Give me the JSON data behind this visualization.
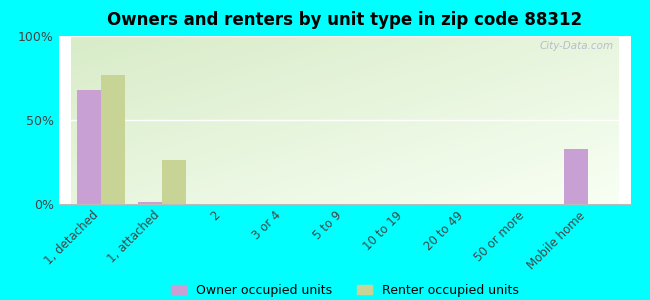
{
  "title": "Owners and renters by unit type in zip code 88312",
  "categories": [
    "1, detached",
    "1, attached",
    "2",
    "3 or 4",
    "5 to 9",
    "10 to 19",
    "20 to 49",
    "50 or more",
    "Mobile home"
  ],
  "owner_values": [
    68,
    1,
    0,
    0,
    0,
    0,
    0,
    0,
    33
  ],
  "renter_values": [
    77,
    26,
    0,
    0,
    0,
    0,
    0,
    0,
    0
  ],
  "owner_color": "#c8a0d4",
  "renter_color": "#c8d496",
  "background_color": "#00ffff",
  "plot_bg_topleft": "#d8ecc8",
  "plot_bg_bottomright": "#f4fef0",
  "ylim": [
    0,
    100
  ],
  "yticks": [
    0,
    50,
    100
  ],
  "ytick_labels": [
    "0%",
    "50%",
    "100%"
  ],
  "bar_width": 0.4,
  "legend_labels": [
    "Owner occupied units",
    "Renter occupied units"
  ],
  "watermark": "City-Data.com"
}
